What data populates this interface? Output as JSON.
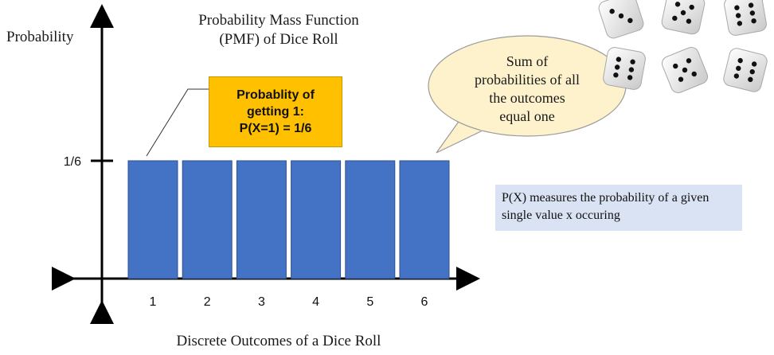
{
  "chart_data": {
    "type": "bar",
    "title": [
      "Probability Mass Function",
      "(PMF) of Dice Roll"
    ],
    "xlabel": "Discrete Outcomes of a Dice Roll",
    "ylabel": "Probability",
    "categories": [
      "1",
      "2",
      "3",
      "4",
      "5",
      "6"
    ],
    "values": [
      0.1667,
      0.1667,
      0.1667,
      0.1667,
      0.1667,
      0.1667
    ],
    "y_tick_labels": [
      "1/6"
    ],
    "y_tick_values": [
      0.1667
    ],
    "bar_color": "#4472c4",
    "grid": false
  },
  "callout": {
    "lines": [
      "Probablity of",
      "getting 1:",
      "P(X=1) = 1/6"
    ],
    "color": "#ffc000"
  },
  "bubble": {
    "lines": [
      "Sum of",
      "probabilities of all",
      "the outcomes",
      "equal one"
    ],
    "color": "#fdf2cc"
  },
  "info_box": {
    "text": "P(X) measures the probability of a given single value x occuring",
    "color": "#dae3f3"
  },
  "illustration": {
    "icon": "dice-icon",
    "count": 6
  }
}
